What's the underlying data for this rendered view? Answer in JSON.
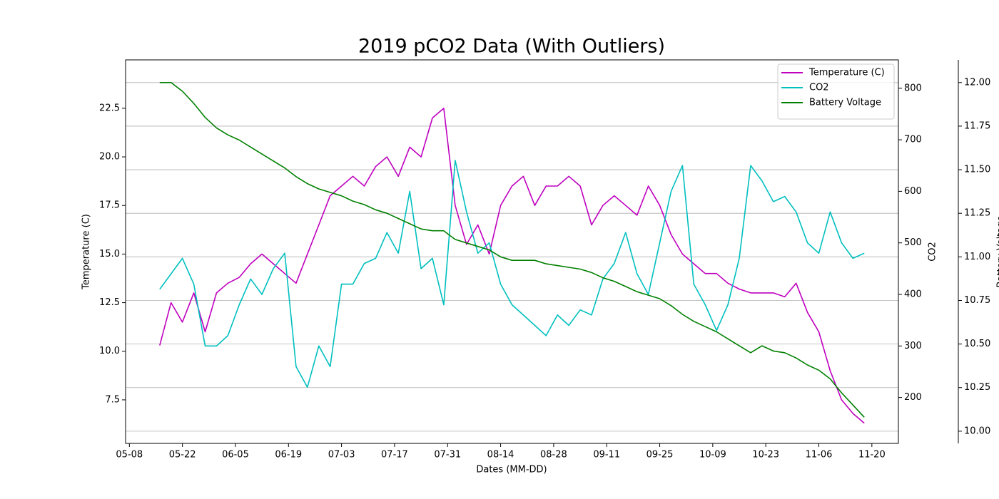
{
  "chart_data": {
    "type": "line",
    "title": "2019 pCO2 Data (With Outliers)",
    "xlabel": "Dates (MM-DD)",
    "ylabel": "Temperature (C)",
    "y2label": "CO2",
    "y3label": "Battery Voltage",
    "x": [
      "05-16",
      "05-19",
      "05-22",
      "05-25",
      "05-28",
      "05-31",
      "06-03",
      "06-06",
      "06-09",
      "06-12",
      "06-15",
      "06-18",
      "06-21",
      "06-24",
      "06-27",
      "06-30",
      "07-03",
      "07-06",
      "07-09",
      "07-12",
      "07-15",
      "07-18",
      "07-21",
      "07-24",
      "07-27",
      "07-30",
      "08-02",
      "08-05",
      "08-08",
      "08-11",
      "08-14",
      "08-17",
      "08-20",
      "08-23",
      "08-26",
      "08-29",
      "09-01",
      "09-04",
      "09-07",
      "09-10",
      "09-13",
      "09-16",
      "09-19",
      "09-22",
      "09-25",
      "09-28",
      "10-01",
      "10-04",
      "10-07",
      "10-10",
      "10-13",
      "10-16",
      "10-19",
      "10-22",
      "10-25",
      "10-28",
      "10-31",
      "11-03",
      "11-06",
      "11-09",
      "11-12",
      "11-15",
      "11-18"
    ],
    "xlim": [
      "05-07",
      "11-27"
    ],
    "xticks": [
      "05-08",
      "05-22",
      "06-05",
      "06-19",
      "07-03",
      "07-17",
      "07-31",
      "08-14",
      "08-28",
      "09-11",
      "09-25",
      "10-09",
      "10-23",
      "11-06",
      "11-20"
    ],
    "ylim": [
      5.26,
      24.99
    ],
    "yticks": [
      7.5,
      {
        "value": 10,
        "label": "10.0"
      },
      12.5,
      {
        "value": 15,
        "label": "15.0"
      },
      17.5,
      {
        "value": 20,
        "label": "20.0"
      },
      22.5
    ],
    "y2lim": [
      111,
      855
    ],
    "y2ticks": [
      200,
      300,
      400,
      500,
      600,
      700,
      800
    ],
    "y3lim": [
      9.93,
      12.13
    ],
    "y3ticks": [
      {
        "value": 10,
        "label": "10.00"
      },
      {
        "value": 10.25,
        "label": "10.25"
      },
      {
        "value": 10.5,
        "label": "10.50"
      },
      {
        "value": 10.75,
        "label": "10.75"
      },
      {
        "value": 11,
        "label": "11.00"
      },
      {
        "value": 11.25,
        "label": "11.25"
      },
      {
        "value": 11.5,
        "label": "11.50"
      },
      {
        "value": 11.75,
        "label": "11.75"
      },
      {
        "value": 12,
        "label": "12.00"
      }
    ],
    "grid_axis": "y3",
    "legend": "upper right",
    "series": [
      {
        "name": "Temperature (C)",
        "color": "#bf00bf",
        "axis": "y",
        "values": [
          10.3,
          12.5,
          11.5,
          13,
          11,
          13,
          13.5,
          13.8,
          14.5,
          15,
          14.5,
          14,
          13.5,
          15,
          16.5,
          18,
          18.5,
          19,
          18.5,
          19.5,
          20,
          19,
          20.5,
          20,
          22,
          22.5,
          17.5,
          15.5,
          16.5,
          15,
          17.5,
          18.5,
          19,
          17.5,
          18.5,
          18.5,
          19,
          18.5,
          16.5,
          17.5,
          18,
          17.5,
          17,
          18.5,
          17.5,
          16,
          15,
          14.5,
          14,
          14,
          13.5,
          13.2,
          13,
          13,
          13,
          12.8,
          13.5,
          12,
          11,
          9,
          7.5,
          6.8,
          6.3
        ]
      },
      {
        "name": "CO2",
        "color": "#00bfbf",
        "axis": "y2",
        "values": [
          410,
          440,
          470,
          420,
          300,
          300,
          320,
          380,
          430,
          400,
          450,
          480,
          260,
          220,
          300,
          260,
          420,
          420,
          460,
          470,
          520,
          480,
          600,
          450,
          470,
          380,
          660,
          560,
          480,
          500,
          420,
          380,
          360,
          340,
          320,
          360,
          340,
          370,
          360,
          430,
          460,
          520,
          440,
          400,
          500,
          600,
          650,
          420,
          380,
          330,
          380,
          470,
          650,
          620,
          580,
          590,
          560,
          500,
          480,
          560,
          500,
          470,
          480
        ]
      },
      {
        "name": "Battery Voltage",
        "color": "#008000",
        "axis": "y3",
        "values": [
          12.0,
          12.0,
          11.95,
          11.88,
          11.8,
          11.74,
          11.7,
          11.67,
          11.63,
          11.59,
          11.55,
          11.51,
          11.46,
          11.42,
          11.39,
          11.37,
          11.35,
          11.32,
          11.3,
          11.27,
          11.25,
          11.22,
          11.19,
          11.16,
          11.15,
          11.15,
          11.1,
          11.08,
          11.06,
          11.04,
          11.0,
          10.98,
          10.98,
          10.98,
          10.96,
          10.95,
          10.94,
          10.93,
          10.91,
          10.88,
          10.86,
          10.83,
          10.8,
          10.78,
          10.76,
          10.72,
          10.67,
          10.63,
          10.6,
          10.57,
          10.53,
          10.49,
          10.45,
          10.49,
          10.46,
          10.45,
          10.42,
          10.38,
          10.35,
          10.3,
          10.22,
          10.15,
          10.08
        ]
      }
    ]
  }
}
